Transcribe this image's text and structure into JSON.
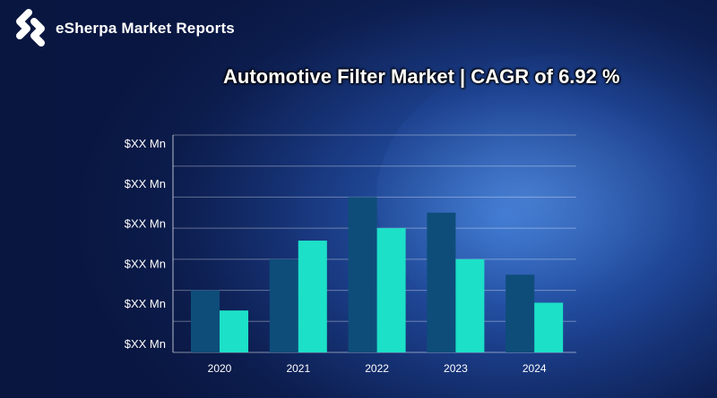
{
  "brand": {
    "name": "eSherpa Market Reports",
    "logo_icon": "esherpa-logo-icon"
  },
  "chart_data": {
    "type": "bar",
    "title": "Automotive Filter Market | CAGR of 6.92 %",
    "xlabel": "",
    "ylabel": "",
    "categories": [
      "2020",
      "2021",
      "2022",
      "2023",
      "2024"
    ],
    "series": [
      {
        "values": [
          2.0,
          3.0,
          5.0,
          4.5,
          2.5
        ],
        "color": "#0e4d7a"
      },
      {
        "values": [
          1.35,
          3.6,
          4.0,
          3.0,
          1.6
        ],
        "color": "#1de0c8"
      }
    ],
    "y_tick_labels": [
      "$XX Mn",
      "$XX Mn",
      "$XX Mn",
      "$XX Mn",
      "$XX Mn",
      "$XX Mn"
    ],
    "ylim": [
      0,
      7
    ],
    "grid": true,
    "legend": "none"
  }
}
